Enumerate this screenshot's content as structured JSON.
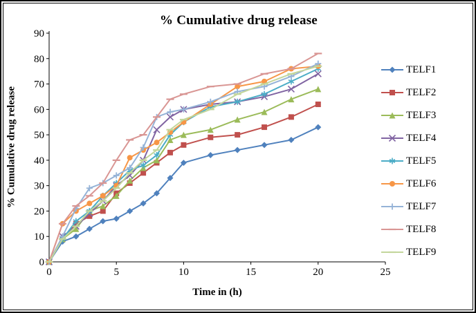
{
  "frame": {
    "background": "#ffffff",
    "border_color": "#000000"
  },
  "chart_data": {
    "type": "line",
    "title": "% Cumulative drug release",
    "xlabel": "Time in (h)",
    "ylabel": "% Cumulative drug release",
    "xlim": [
      0,
      25
    ],
    "ylim": [
      0,
      90
    ],
    "xticks": [
      0,
      5,
      10,
      15,
      20,
      25
    ],
    "yticks": [
      0,
      10,
      20,
      30,
      40,
      50,
      60,
      70,
      80,
      90
    ],
    "grid": false,
    "legend_position": "right",
    "x": [
      0,
      1,
      2,
      3,
      4,
      5,
      6,
      7,
      8,
      9,
      10,
      12,
      14,
      16,
      18,
      20
    ],
    "series": [
      {
        "name": "TELF1",
        "color": "#4F81BD",
        "marker": "diamond",
        "values": [
          0,
          8,
          10,
          13,
          16,
          17,
          20,
          23,
          27,
          33,
          39,
          42,
          44,
          46,
          48,
          53
        ]
      },
      {
        "name": "TELF2",
        "color": "#C0504D",
        "marker": "square",
        "values": [
          0,
          9,
          15,
          18,
          20,
          27,
          31,
          35,
          39,
          43,
          46,
          49,
          50,
          53,
          57,
          62
        ]
      },
      {
        "name": "TELF3",
        "color": "#9BBB59",
        "marker": "triangle",
        "values": [
          0,
          9,
          13,
          20,
          22,
          26,
          32,
          37,
          40,
          48,
          50,
          52,
          56,
          59,
          64,
          68
        ]
      },
      {
        "name": "TELF4",
        "color": "#8064A2",
        "marker": "x",
        "values": [
          0,
          10,
          14,
          19,
          24,
          30,
          34,
          40,
          52,
          57,
          60,
          62,
          63,
          65,
          68,
          74
        ]
      },
      {
        "name": "TELF5",
        "color": "#4BACC6",
        "marker": "asterisk",
        "values": [
          0,
          9,
          16,
          20,
          26,
          31,
          36,
          38,
          42,
          50,
          55,
          61,
          63,
          66,
          71,
          76
        ]
      },
      {
        "name": "TELF6",
        "color": "#F79646",
        "marker": "circle",
        "values": [
          0,
          15,
          20,
          23,
          26,
          30,
          41,
          44,
          47,
          51,
          55,
          62,
          69,
          71,
          76,
          77
        ]
      },
      {
        "name": "TELF7",
        "color": "#95B3D7",
        "marker": "plus",
        "values": [
          0,
          10,
          21,
          29,
          31,
          34,
          37,
          45,
          57,
          59,
          60,
          63,
          67,
          69,
          73,
          78
        ]
      },
      {
        "name": "TELF8",
        "color": "#D99694",
        "marker": "dash",
        "values": [
          0,
          15,
          22,
          26,
          31,
          40,
          48,
          50,
          57,
          64,
          66,
          69,
          70,
          74,
          76,
          82
        ]
      },
      {
        "name": "TELF9",
        "color": "#C3D69B",
        "marker": "dash",
        "values": [
          0,
          9,
          14,
          20,
          24,
          29,
          35,
          40,
          44,
          52,
          56,
          60,
          66,
          70,
          74,
          77
        ]
      }
    ]
  }
}
